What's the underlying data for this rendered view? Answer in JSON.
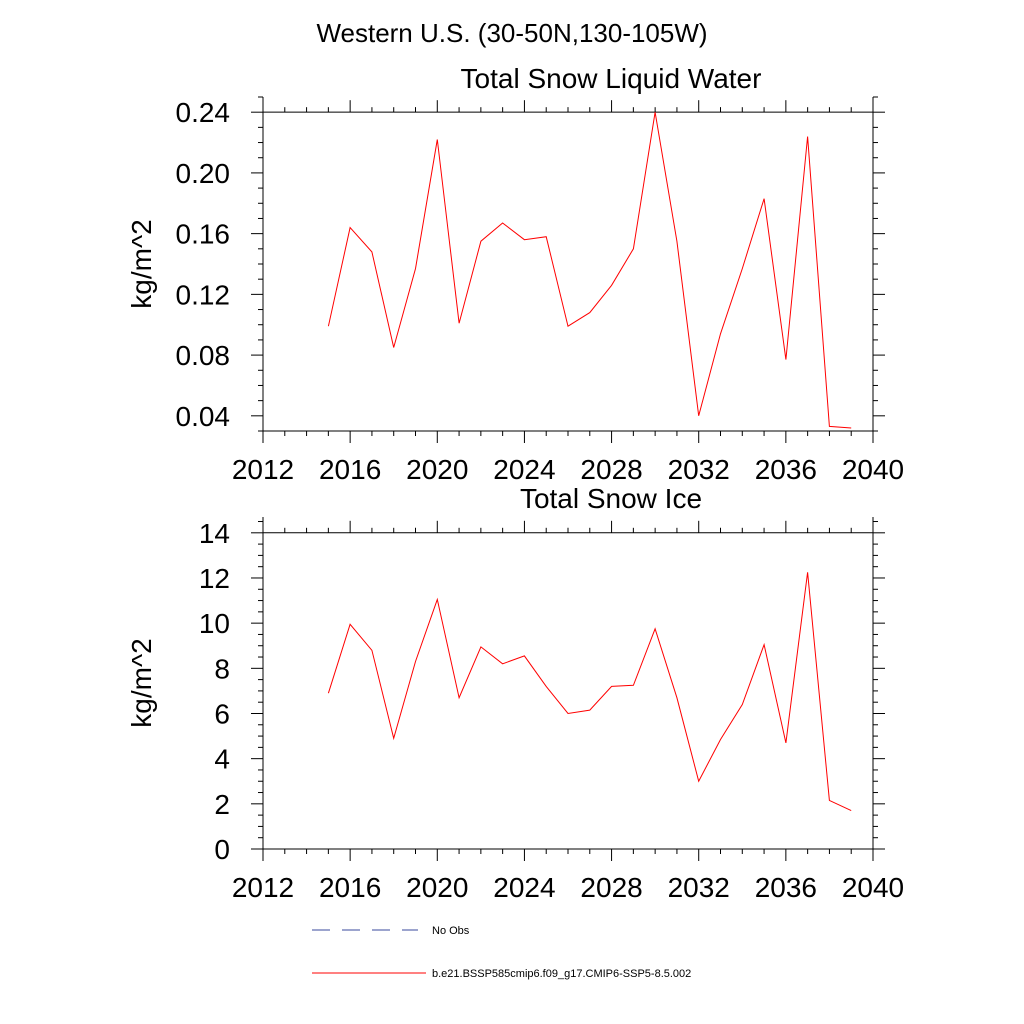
{
  "figure": {
    "title": "Western U.S. (30-50N,130-105W)"
  },
  "chart_data": [
    {
      "type": "line",
      "title": "Total Snow Liquid Water",
      "xlabel": "",
      "ylabel": "kg/m^2",
      "xlim": [
        2012,
        2040
      ],
      "ylim": [
        0.03,
        0.25
      ],
      "x_ticks": [
        2012,
        2016,
        2020,
        2024,
        2028,
        2032,
        2036,
        2040
      ],
      "y_ticks": [
        0.04,
        0.08,
        0.12,
        0.16,
        0.2,
        0.24
      ],
      "y_tick_labels": [
        "0.04",
        "0.08",
        "0.12",
        "0.16",
        "0.20",
        "0.24"
      ],
      "x_minor_step": 1,
      "y_minor_step": 0.01,
      "grid": false,
      "x": [
        2015,
        2016,
        2017,
        2018,
        2019,
        2020,
        2021,
        2022,
        2023,
        2024,
        2025,
        2026,
        2027,
        2028,
        2029,
        2030,
        2031,
        2032,
        2033,
        2034,
        2035,
        2036,
        2037,
        2038,
        2039
      ],
      "series": [
        {
          "name": "b.e21.BSSP585cmip6.f09_g17.CMIP6-SSP5-8.5.002",
          "color": "#ff0000",
          "values": [
            0.099,
            0.164,
            0.148,
            0.085,
            0.137,
            0.222,
            0.101,
            0.155,
            0.167,
            0.156,
            0.158,
            0.099,
            0.108,
            0.126,
            0.15,
            0.24,
            0.155,
            0.04,
            0.094,
            0.137,
            0.183,
            0.077,
            0.224,
            0.033,
            0.032
          ]
        }
      ]
    },
    {
      "type": "line",
      "title": "Total Snow Ice",
      "xlabel": "",
      "ylabel": "kg/m^2",
      "xlim": [
        2012,
        2040
      ],
      "ylim": [
        0,
        14
      ],
      "x_ticks": [
        2012,
        2016,
        2020,
        2024,
        2028,
        2032,
        2036,
        2040
      ],
      "y_ticks": [
        0,
        2,
        4,
        6,
        8,
        10,
        12,
        14
      ],
      "y_tick_labels": [
        "0",
        "2",
        "4",
        "6",
        "8",
        "10",
        "12",
        "14"
      ],
      "x_minor_step": 1,
      "y_minor_step": 0.5,
      "grid": false,
      "x": [
        2015,
        2016,
        2017,
        2018,
        2019,
        2020,
        2021,
        2022,
        2023,
        2024,
        2025,
        2026,
        2027,
        2028,
        2029,
        2030,
        2031,
        2032,
        2033,
        2034,
        2035,
        2036,
        2037,
        2038,
        2039
      ],
      "series": [
        {
          "name": "b.e21.BSSP585cmip6.f09_g17.CMIP6-SSP5-8.5.002",
          "color": "#ff0000",
          "values": [
            6.9,
            9.95,
            8.8,
            4.9,
            8.3,
            11.05,
            6.7,
            8.95,
            8.2,
            8.55,
            7.2,
            6.0,
            6.15,
            7.2,
            7.25,
            9.75,
            6.7,
            3.0,
            4.85,
            6.4,
            9.05,
            4.7,
            12.25,
            2.15,
            1.7
          ]
        }
      ]
    }
  ],
  "legend": {
    "placement": "bottom",
    "entries": [
      {
        "label": "No Obs",
        "color": "#3a4a9c",
        "style": "dashed"
      },
      {
        "label": "b.e21.BSSP585cmip6.f09_g17.CMIP6-SSP5-8.5.002",
        "color": "#ff0000",
        "style": "solid"
      }
    ]
  }
}
